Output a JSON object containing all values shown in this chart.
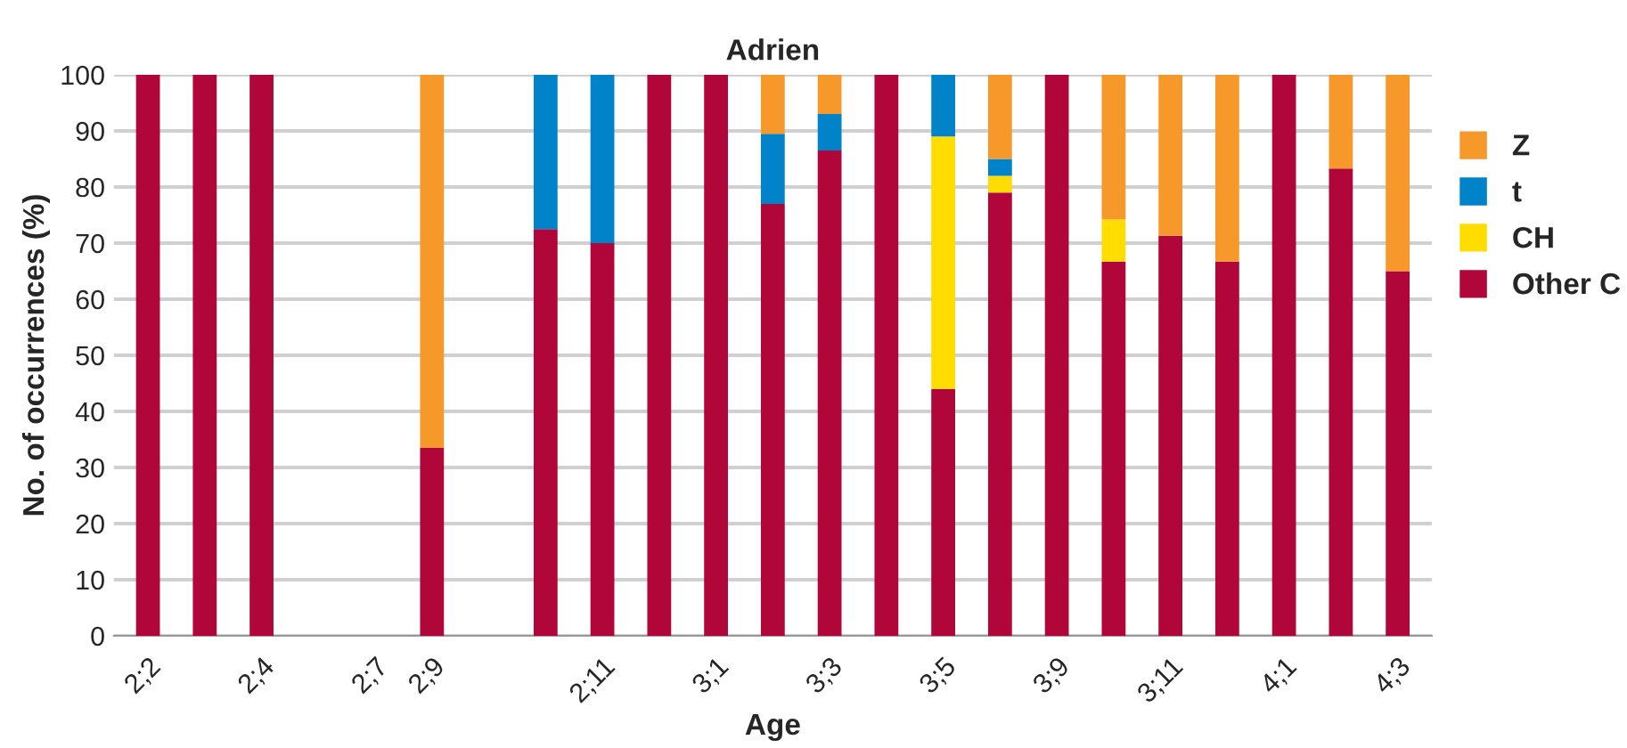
{
  "chart_data": {
    "type": "bar",
    "title": "Adrien",
    "xlabel": "Age",
    "ylabel": "No. of occurrences (%)",
    "stacked": true,
    "categories": [
      "2;2",
      null,
      "2;4",
      null,
      "2;7",
      "2;9",
      null,
      null,
      "2;11",
      null,
      "3;1",
      null,
      "3;3",
      null,
      "3;5",
      null,
      "3;9",
      null,
      "3;11",
      null,
      "4;1",
      null,
      "4;3"
    ],
    "series": [
      {
        "name": "Other C",
        "color": "#b0063a",
        "values": [
          100,
          100,
          100,
          null,
          null,
          33.5,
          null,
          72.5,
          70,
          100,
          100,
          77,
          86.5,
          100,
          44,
          79,
          100,
          66.7,
          71.3,
          66.7,
          100,
          83.3,
          65
        ]
      },
      {
        "name": "CH",
        "color": "#ffdd00",
        "values": [
          null,
          null,
          null,
          null,
          null,
          null,
          null,
          null,
          null,
          null,
          null,
          null,
          null,
          null,
          45,
          3,
          null,
          7.5,
          null,
          null,
          null,
          null,
          null
        ]
      },
      {
        "name": "t",
        "color": "#0083c9",
        "values": [
          null,
          null,
          null,
          null,
          null,
          null,
          null,
          27.5,
          30,
          null,
          null,
          12.5,
          6.5,
          null,
          11,
          3,
          null,
          null,
          null,
          null,
          null,
          null,
          null
        ]
      },
      {
        "name": "Z",
        "color": "#f7992a",
        "values": [
          null,
          null,
          null,
          null,
          null,
          66.5,
          null,
          null,
          null,
          null,
          null,
          10.5,
          7,
          null,
          null,
          15,
          null,
          25.8,
          28.7,
          33.3,
          null,
          16.7,
          35
        ]
      }
    ],
    "ylim": [
      0,
      100
    ],
    "yticks": [
      0,
      10,
      20,
      30,
      40,
      50,
      60,
      70,
      80,
      90,
      100
    ],
    "grid": "y",
    "legend": "right"
  }
}
